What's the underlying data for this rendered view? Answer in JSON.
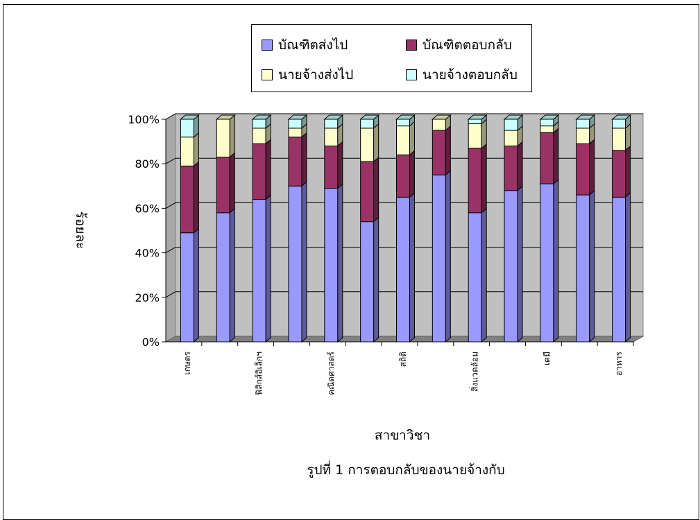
{
  "chart_data": {
    "type": "bar",
    "stacked": true,
    "normalized_percent": true,
    "three_d": true,
    "categories": [
      "เกษตร",
      "",
      "ฟิสิกส์อิเล็กฯ",
      "",
      "คณิตศาสตร์",
      "",
      "สถิติ",
      "",
      "สิ่งแวดล้อม",
      "",
      "เคมี",
      "",
      "อาหาร"
    ],
    "series": [
      {
        "name": "บัณฑิตส่งไป",
        "color": "#9999ff",
        "values": [
          49,
          58,
          64,
          70,
          69,
          54,
          65,
          75,
          58,
          68,
          71,
          66,
          65
        ]
      },
      {
        "name": "บัณฑิตตอบกลับ",
        "color": "#993366",
        "values": [
          30,
          25,
          25,
          22,
          19,
          27,
          19,
          20,
          29,
          20,
          23,
          23,
          21
        ]
      },
      {
        "name": "นายจ้างส่งไป",
        "color": "#ffffcc",
        "values": [
          13,
          17,
          7,
          4,
          8,
          15,
          13,
          5,
          11,
          7,
          3,
          7,
          10
        ]
      },
      {
        "name": "นายจ้างตอบกลับ",
        "color": "#ccffff",
        "values": [
          8,
          0,
          4,
          4,
          4,
          4,
          3,
          0,
          2,
          5,
          3,
          4,
          4
        ]
      }
    ],
    "y_ticks": [
      "0%",
      "20%",
      "40%",
      "60%",
      "80%",
      "100%"
    ],
    "ylim": [
      0,
      100
    ],
    "ylabel": "ร้อยละ",
    "xlabel": "สาขาวิชา",
    "legend_position": "top",
    "grid": true
  },
  "caption": "รูปที่ 1 การตอบกลับของนายจ้างกับ"
}
